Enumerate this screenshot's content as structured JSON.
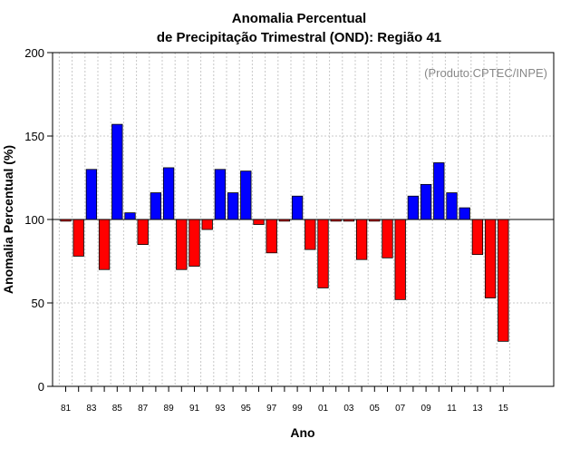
{
  "chart_data": {
    "type": "bar",
    "title_line1": "Anomalia Percentual",
    "title_line2": "de Precipitação Trimestral (OND): Região 41",
    "watermark": "(Produto:CPTEC/INPE)",
    "xlabel": "Ano",
    "ylabel": "Anomalia Percentual (%)",
    "ylim": [
      0,
      200
    ],
    "yticks": [
      0,
      50,
      100,
      150,
      200
    ],
    "baseline": 100,
    "years": [
      "81",
      "82",
      "83",
      "84",
      "85",
      "86",
      "87",
      "88",
      "89",
      "90",
      "91",
      "92",
      "93",
      "94",
      "95",
      "96",
      "97",
      "98",
      "99",
      "00",
      "01",
      "02",
      "03",
      "04",
      "05",
      "06",
      "07",
      "08",
      "09",
      "10",
      "11",
      "12",
      "13",
      "14",
      "15"
    ],
    "xtick_labels": [
      "81",
      "83",
      "85",
      "87",
      "89",
      "91",
      "93",
      "95",
      "97",
      "99",
      "01",
      "03",
      "05",
      "07",
      "09",
      "11",
      "13",
      "15"
    ],
    "values": [
      99,
      78,
      130,
      70,
      157,
      104,
      85,
      116,
      131,
      70,
      72,
      94,
      130,
      116,
      129,
      97,
      80,
      99,
      114,
      82,
      59,
      99,
      99,
      76,
      99,
      77,
      52,
      114,
      121,
      134,
      116,
      107,
      79,
      53,
      27
    ],
    "colors": {
      "above": "#0000ff",
      "below": "#ff0000"
    },
    "grid": true
  }
}
